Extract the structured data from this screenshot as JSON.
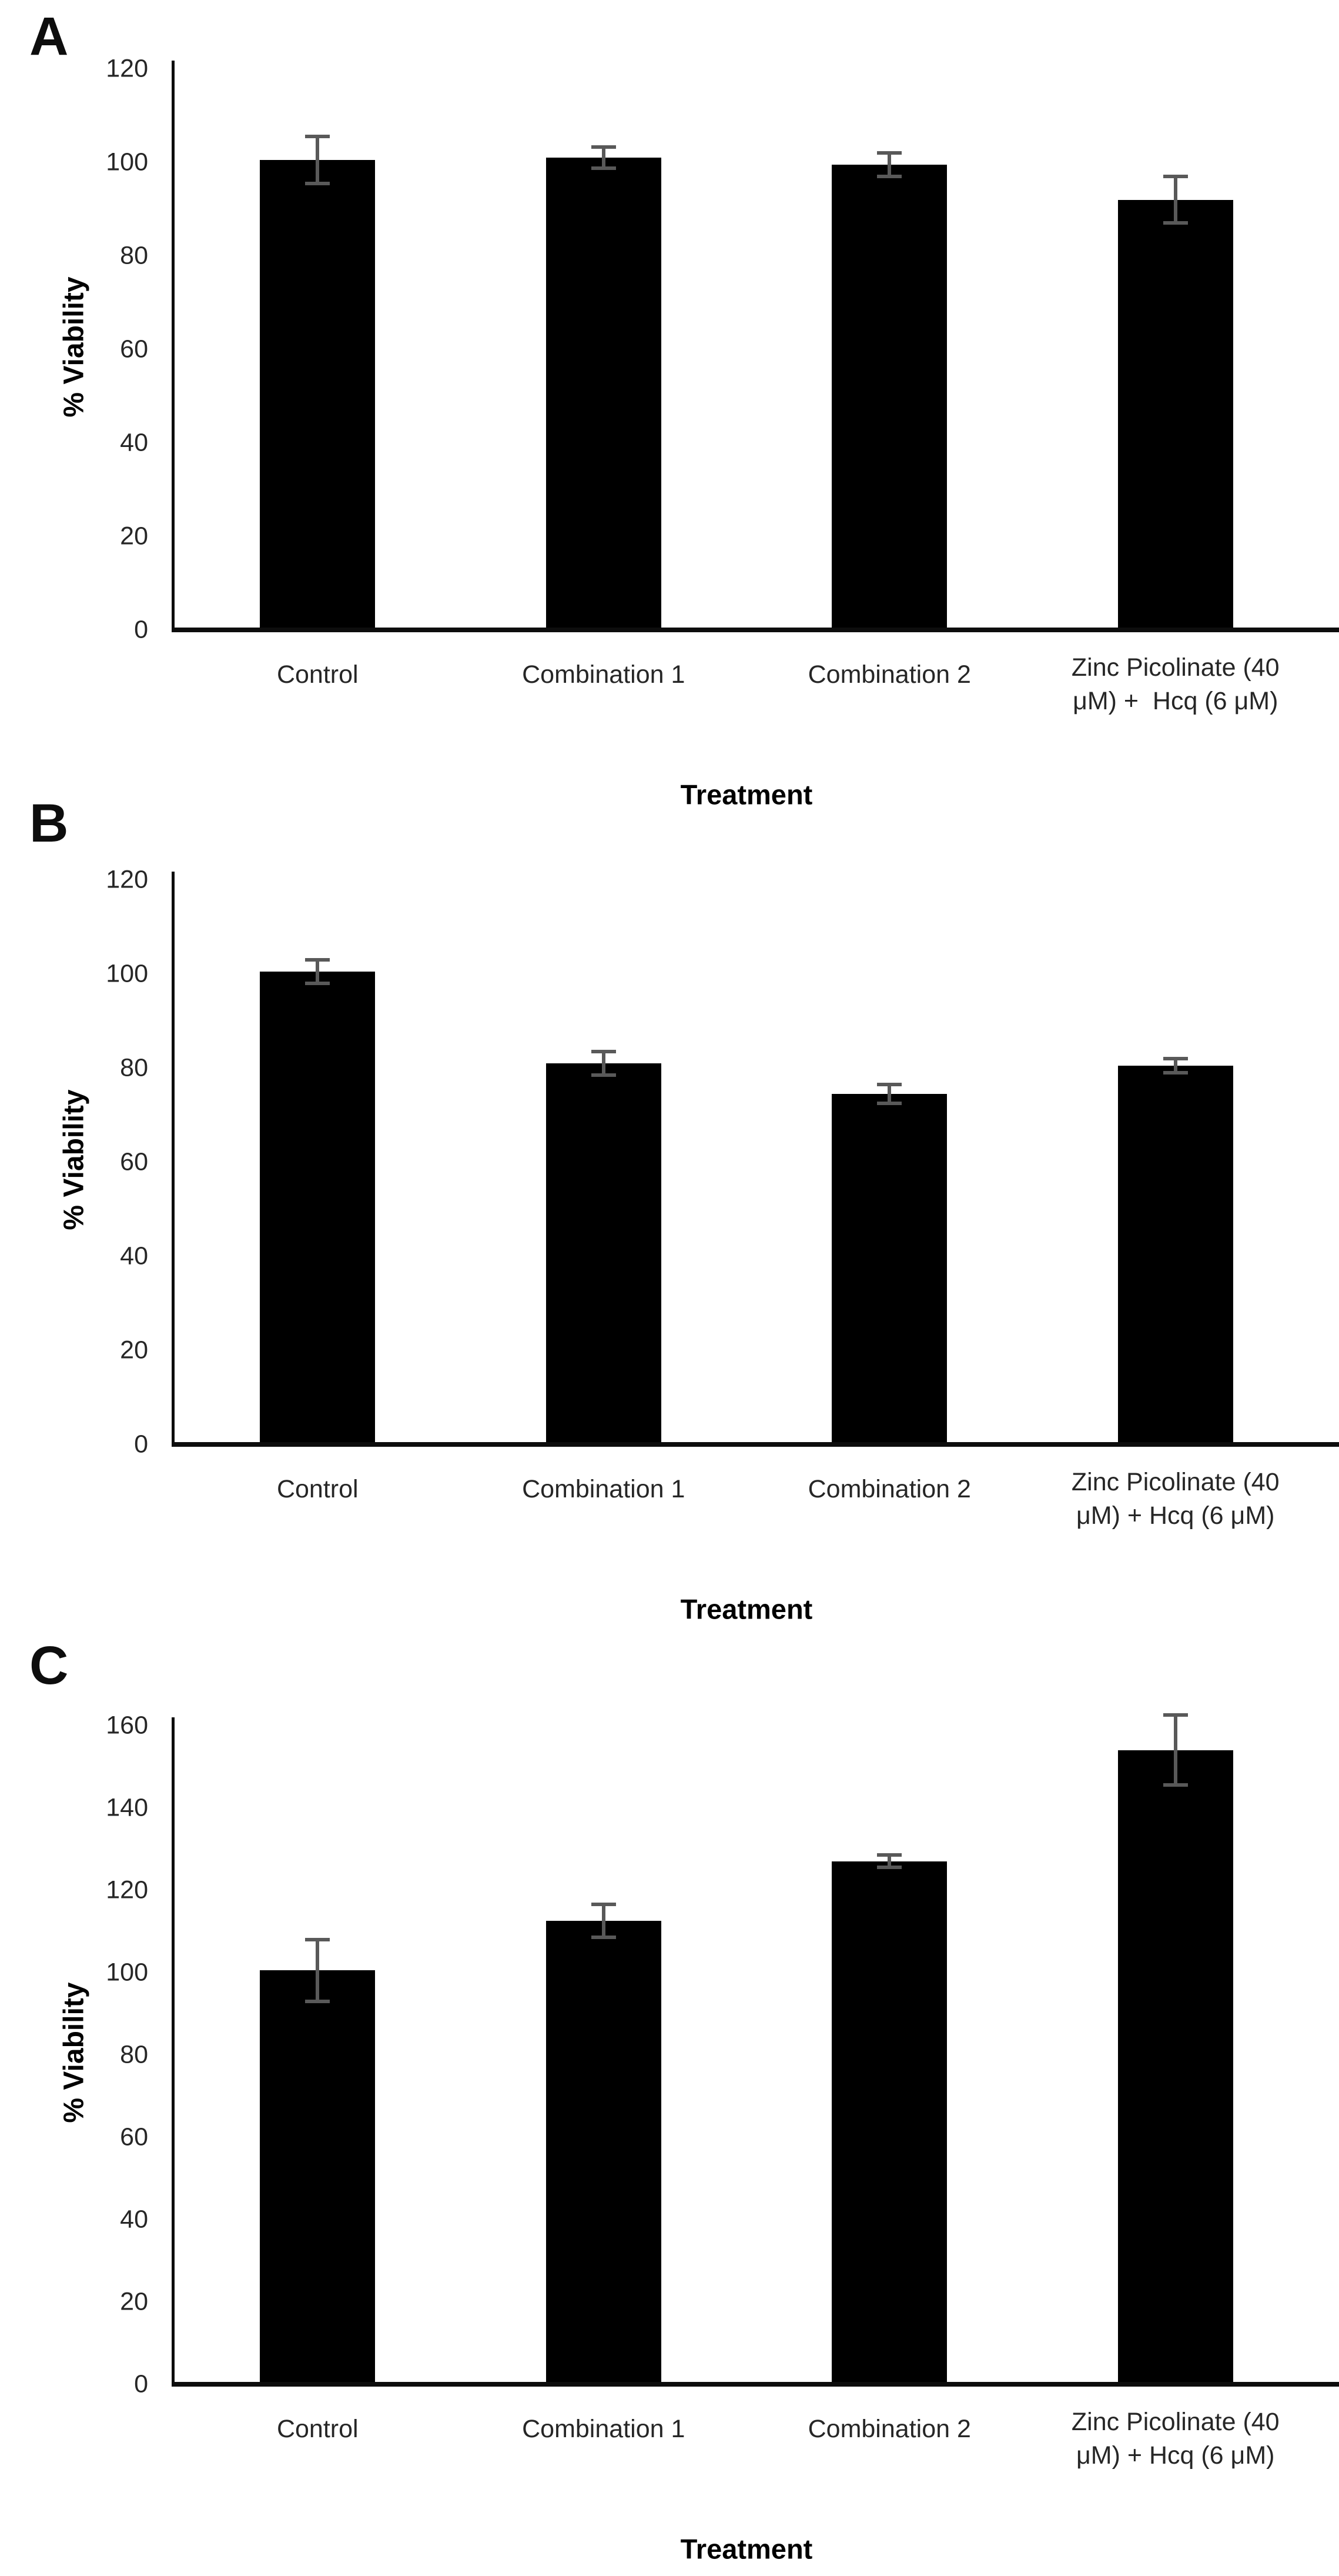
{
  "figure": {
    "background_color": "#ffffff",
    "bar_color": "#000000",
    "error_bar_color": "#595959",
    "axis_color": "#0d0d0d"
  },
  "chart_data": [
    {
      "type": "bar",
      "panel_label": "A",
      "ylabel": "% Viability",
      "xlabel": "Treatment",
      "ylim": [
        0,
        120
      ],
      "ytick_step": 20,
      "yticks": [
        0,
        20,
        40,
        60,
        80,
        100,
        120
      ],
      "grid": false,
      "legend": false,
      "categories": [
        "Control",
        "Combination 1",
        "Combination 2",
        "Zinc Picolinate (40 μM) +  Hcq (6 μM)"
      ],
      "category_lines": [
        [
          "Control"
        ],
        [
          "Combination 1"
        ],
        [
          "Combination 2"
        ],
        [
          "Zinc Picolinate (40",
          "μM) +  Hcq (6 μM)"
        ]
      ],
      "values": [
        100,
        100.5,
        99,
        91.5
      ],
      "errors": [
        5,
        2.3,
        2.5,
        5
      ]
    },
    {
      "type": "bar",
      "panel_label": "B",
      "ylabel": "% Viability",
      "xlabel": "Treatment",
      "ylim": [
        0,
        120
      ],
      "ytick_step": 20,
      "yticks": [
        0,
        20,
        40,
        60,
        80,
        100,
        120
      ],
      "grid": false,
      "legend": false,
      "categories": [
        "Control",
        "Combination 1",
        "Combination 2",
        "Zinc Picolinate (40 μM) + Hcq (6 μM)"
      ],
      "category_lines": [
        [
          "Control"
        ],
        [
          "Combination 1"
        ],
        [
          "Combination 2"
        ],
        [
          "Zinc Picolinate (40",
          "μM) + Hcq (6 μM)"
        ]
      ],
      "values": [
        100,
        80.5,
        74,
        80
      ],
      "errors": [
        2.5,
        2.5,
        2,
        1.5
      ]
    },
    {
      "type": "bar",
      "panel_label": "C",
      "ylabel": "% Viability",
      "xlabel": "Treatment",
      "ylim": [
        0,
        160
      ],
      "ytick_step": 20,
      "yticks": [
        0,
        20,
        40,
        60,
        80,
        100,
        120,
        140,
        160
      ],
      "grid": false,
      "legend": false,
      "categories": [
        "Control",
        "Combination 1",
        "Combination 2",
        "Zinc Picolinate (40 μM) + Hcq (6 μM)"
      ],
      "category_lines": [
        [
          "Control"
        ],
        [
          "Combination 1"
        ],
        [
          "Combination 2"
        ],
        [
          "Zinc Picolinate (40",
          "μM) + Hcq (6 μM)"
        ]
      ],
      "values": [
        100,
        112,
        126.5,
        153.5
      ],
      "errors": [
        7.5,
        4,
        1.5,
        8.5
      ]
    }
  ]
}
